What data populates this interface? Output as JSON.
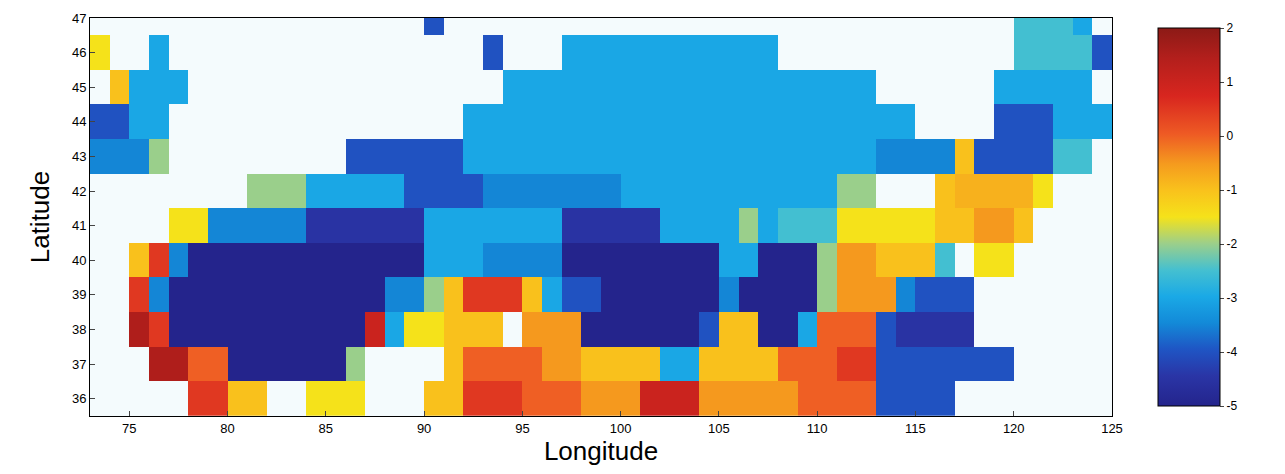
{
  "chart_data": {
    "type": "heatmap",
    "x_label": "Longitude",
    "y_label": "Latitude",
    "x": [
      73.5,
      74.5,
      75.5,
      76.5,
      77.5,
      78.5,
      79.5,
      80.5,
      81.5,
      82.5,
      83.5,
      84.5,
      85.5,
      86.5,
      87.5,
      88.5,
      89.5,
      90.5,
      91.5,
      92.5,
      93.5,
      94.5,
      95.5,
      96.5,
      97.5,
      98.5,
      99.5,
      100.5,
      101.5,
      102.5,
      103.5,
      104.5,
      105.5,
      106.5,
      107.5,
      108.5,
      109.5,
      110.5,
      111.5,
      112.5,
      113.5,
      114.5,
      115.5,
      116.5,
      117.5,
      118.5,
      119.5,
      120.5,
      121.5,
      122.5,
      123.5,
      124.5
    ],
    "y": [
      36,
      37,
      38,
      39,
      40,
      41,
      42,
      43,
      44,
      45,
      46,
      47
    ],
    "z": [
      [
        null,
        null,
        null,
        null,
        null,
        0.5,
        0.5,
        -1,
        -1,
        null,
        null,
        -1.5,
        -1.5,
        -1.5,
        null,
        null,
        null,
        -1,
        -1,
        0.5,
        0.5,
        0.5,
        0,
        0,
        0,
        -0.5,
        -0.5,
        -0.5,
        1,
        1,
        1,
        -0.5,
        -0.5,
        -0.5,
        -0.5,
        -0.5,
        0,
        0,
        0,
        0,
        -4,
        -4,
        -4,
        -4,
        null,
        null,
        null,
        null,
        null,
        null,
        null,
        null
      ],
      [
        null,
        null,
        null,
        1.5,
        1.5,
        0,
        0,
        -5,
        -5,
        -5,
        -5,
        -5,
        -5,
        -2,
        null,
        null,
        null,
        null,
        -1,
        0,
        0,
        0,
        0,
        -0.5,
        -0.5,
        -1,
        -1,
        -1,
        -1,
        -3,
        -3,
        -1,
        -1,
        -1,
        -1,
        0,
        0,
        0,
        0.5,
        0.5,
        -4,
        -4,
        -4,
        -4,
        -4,
        -4,
        -4,
        null,
        null,
        null,
        null,
        null
      ],
      [
        null,
        null,
        1.5,
        0.5,
        -5,
        -5,
        -5,
        -5,
        -5,
        -5,
        -5,
        -5,
        -5,
        -5,
        1,
        -3,
        -1.5,
        -1.5,
        -1,
        -1,
        -1,
        null,
        -0.5,
        -0.5,
        -0.5,
        -5,
        -5,
        -5,
        -5,
        -5,
        -5,
        -4,
        -1,
        -1,
        -5,
        -5,
        -3,
        0,
        0,
        0,
        -4,
        -4.5,
        -4.5,
        -4.5,
        -4.5,
        null,
        null,
        null,
        null,
        null,
        null,
        null
      ],
      [
        null,
        null,
        0.5,
        -3.5,
        -5,
        -5,
        -5,
        -5,
        -5,
        -5,
        -5,
        -5,
        -5,
        -5,
        -5,
        -3.5,
        -3.5,
        -2,
        -1,
        0.5,
        0.5,
        0.5,
        -1,
        -3,
        -4,
        -4,
        -5,
        -5,
        -5,
        -5,
        -5,
        -5,
        -3.5,
        -5,
        -5,
        -5,
        -5,
        -2,
        -0.5,
        -0.5,
        -0.5,
        -3.5,
        -4,
        -4,
        -4,
        null,
        null,
        null,
        null,
        null,
        null,
        null
      ],
      [
        null,
        null,
        -1,
        0.5,
        -3.5,
        -5,
        -5,
        -5,
        -5,
        -5,
        -5,
        -5,
        -5,
        -5,
        -5,
        -5,
        -5,
        -3,
        -3,
        -3,
        -3.5,
        -3.5,
        -3.5,
        -3.5,
        -5,
        -5,
        -5,
        -5,
        -5,
        -5,
        -5,
        -5,
        -3,
        -3,
        -5,
        -5,
        -5,
        -2,
        -0.5,
        -0.5,
        -1,
        -1,
        -1,
        -2.5,
        null,
        -1.5,
        -1.5,
        null,
        null,
        null,
        null,
        null
      ],
      [
        null,
        null,
        null,
        null,
        -1.5,
        -1.5,
        -3.5,
        -3.5,
        -3.5,
        -3.5,
        -3.5,
        -4.5,
        -4.5,
        -4.5,
        -4.5,
        -4.5,
        -4.5,
        -3,
        -3,
        -3,
        -3,
        -3,
        -3,
        -3,
        -4.5,
        -4.5,
        -4.5,
        -4.5,
        -4.5,
        -3,
        -3,
        -3,
        -3,
        -2,
        -3,
        -2.5,
        -2.5,
        -2.5,
        -1.5,
        -1.5,
        -1.5,
        -1.5,
        -1.5,
        -1,
        -1,
        -0.5,
        -0.5,
        -1,
        null,
        null,
        null,
        null
      ],
      [
        null,
        null,
        null,
        null,
        null,
        null,
        null,
        null,
        -2,
        -2,
        -2,
        -3,
        -3,
        -3,
        -3,
        -3,
        -4,
        -4,
        -4,
        -4,
        -3.5,
        -3.5,
        -3.5,
        -3.5,
        -3.5,
        -3.5,
        -3.5,
        -3,
        -3,
        -3,
        -3,
        -3,
        -3,
        -3,
        -3,
        -3,
        -3,
        -3,
        -2,
        -2,
        null,
        null,
        null,
        -1,
        -0.8,
        -0.8,
        -0.8,
        -0.8,
        -1.5,
        null,
        null,
        null
      ],
      [
        -3.5,
        -3.5,
        -3.5,
        -2,
        null,
        null,
        null,
        null,
        null,
        null,
        null,
        null,
        null,
        -4,
        -4,
        -4,
        -4,
        -4,
        -4,
        -3,
        -3,
        -3,
        -3,
        -3,
        -3,
        -3,
        -3,
        -3,
        -3,
        -3,
        -3,
        -3,
        -3,
        -3,
        -3,
        -3,
        -3,
        -3,
        -3,
        -3,
        -3.5,
        -3.5,
        -3.5,
        -3.5,
        -1,
        -4,
        -4,
        -4,
        -4,
        -2.5,
        -2.5,
        null
      ],
      [
        -4,
        -4,
        -3,
        -3,
        null,
        null,
        null,
        null,
        null,
        null,
        null,
        null,
        null,
        null,
        null,
        null,
        null,
        null,
        null,
        -3,
        -3,
        -3,
        -3,
        -3,
        -3,
        -3,
        -3,
        -3,
        -3,
        -3,
        -3,
        -3,
        -3,
        -3,
        -3,
        -3,
        -3,
        -3,
        -3,
        -3,
        -3,
        -3,
        null,
        null,
        null,
        null,
        -4,
        -4,
        -4,
        -3,
        -3,
        -3
      ],
      [
        null,
        -1,
        -3,
        -3,
        -3,
        null,
        null,
        null,
        null,
        null,
        null,
        null,
        null,
        null,
        null,
        null,
        null,
        null,
        null,
        null,
        null,
        -3,
        -3,
        -3,
        -3,
        -3,
        -3,
        -3,
        -3,
        -3,
        -3,
        -3,
        -3,
        -3,
        -3,
        -3,
        -3,
        -3,
        -3,
        -3,
        null,
        null,
        null,
        null,
        null,
        null,
        -3,
        -3,
        -3,
        -3,
        -3,
        null
      ],
      [
        -1.5,
        null,
        null,
        -3,
        null,
        null,
        null,
        null,
        null,
        null,
        null,
        null,
        null,
        null,
        null,
        null,
        null,
        null,
        null,
        null,
        -4,
        null,
        null,
        null,
        -3,
        -3,
        -3,
        -3,
        -3,
        -3,
        -3,
        -3,
        -3,
        -3,
        -3,
        null,
        null,
        null,
        null,
        null,
        null,
        null,
        null,
        null,
        null,
        null,
        null,
        -2.5,
        -2.5,
        -2.5,
        -2.5,
        -4
      ],
      [
        null,
        null,
        null,
        null,
        null,
        null,
        null,
        null,
        null,
        null,
        null,
        null,
        null,
        null,
        null,
        null,
        null,
        -4,
        null,
        null,
        null,
        null,
        null,
        null,
        null,
        null,
        null,
        null,
        null,
        null,
        null,
        null,
        null,
        null,
        null,
        null,
        null,
        null,
        null,
        null,
        null,
        null,
        null,
        null,
        null,
        null,
        null,
        -2.5,
        -2.5,
        -2.5,
        -3,
        null
      ]
    ],
    "xlim": [
      73,
      125
    ],
    "ylim": [
      35.5,
      47
    ],
    "xticks": [
      75,
      80,
      85,
      90,
      95,
      100,
      105,
      110,
      115,
      120,
      125
    ],
    "yticks": [
      36,
      37,
      38,
      39,
      40,
      41,
      42,
      43,
      44,
      45,
      46,
      47
    ],
    "colorbar_range": [
      -5,
      2
    ],
    "colorbar_ticks": [
      -5,
      -4,
      -3,
      -2,
      -1,
      0,
      1,
      2
    ]
  }
}
